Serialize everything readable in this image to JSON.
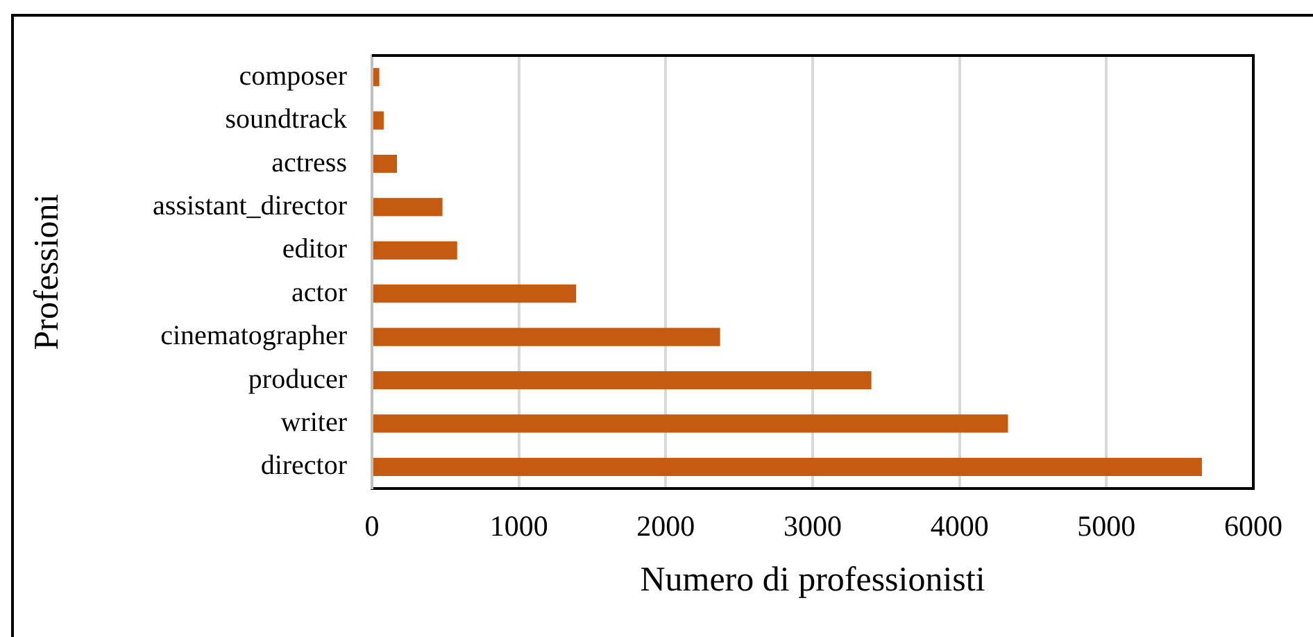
{
  "chart_data": {
    "type": "bar",
    "orientation": "horizontal",
    "xlabel": "Numero di professionisti",
    "ylabel": "Professioni",
    "categories": [
      "composer",
      "soundtrack",
      "actress",
      "assistant_director",
      "editor",
      "actor",
      "cinematographer",
      "producer",
      "writer",
      "director"
    ],
    "values": [
      50,
      80,
      170,
      480,
      580,
      1390,
      2370,
      3400,
      4330,
      5650
    ],
    "color": "#c55a11",
    "xlim": [
      0,
      6000
    ],
    "xticks": [
      0,
      1000,
      2000,
      3000,
      4000,
      5000,
      6000
    ],
    "grid": "x",
    "legend": false
  }
}
